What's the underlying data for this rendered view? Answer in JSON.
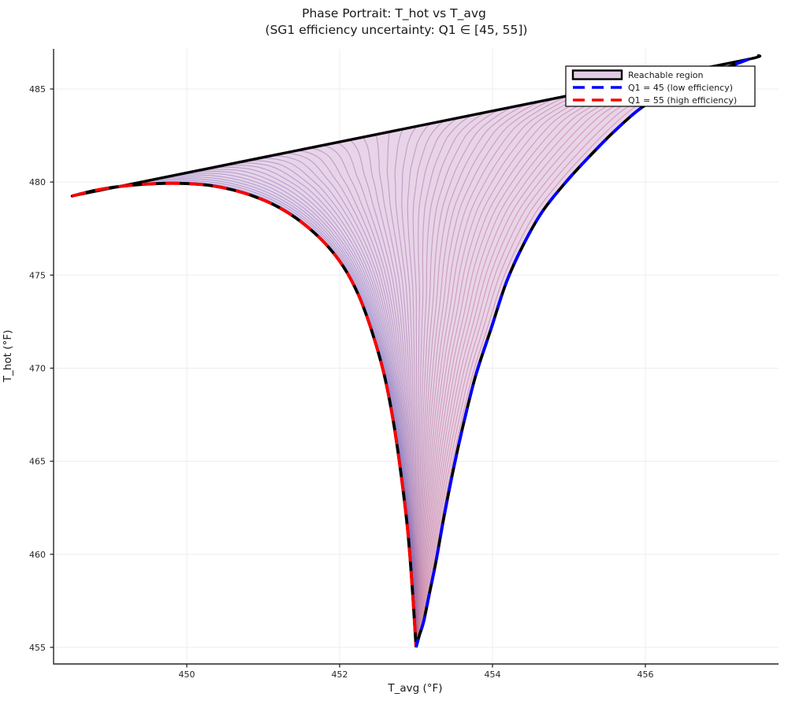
{
  "title": {
    "line1": "Phase Portrait: T_hot vs T_avg",
    "line2": "(SG1 efficiency uncertainty: Q1 ∈ [45, 55])"
  },
  "axes": {
    "xlabel": "T_avg (°F)",
    "ylabel": "T_hot (°F)",
    "x_tick_labels": [
      "450",
      "452",
      "454",
      "456"
    ],
    "x_tick_values": [
      450,
      452,
      454,
      456
    ],
    "y_tick_labels": [
      "455",
      "460",
      "465",
      "470",
      "475",
      "480",
      "485"
    ],
    "y_tick_values": [
      455,
      460,
      465,
      470,
      475,
      480,
      485
    ]
  },
  "legend": {
    "items": [
      {
        "label": "Reachable region",
        "type": "patch",
        "fill": "#e3cce6",
        "edge": "#000000"
      },
      {
        "label": "Q1 = 45 (low efficiency)",
        "type": "dash",
        "color": "#0000ff"
      },
      {
        "label": "Q1 = 55 (high efficiency)",
        "type": "dash",
        "color": "#ff0000"
      }
    ]
  },
  "chart_data": {
    "type": "area",
    "title": "Phase Portrait: T_hot vs T_avg (SG1 efficiency uncertainty: Q1 ∈ [45, 55])",
    "xlabel": "T_avg (°F)",
    "ylabel": "T_hot (°F)",
    "xlim": [
      448.26,
      457.74
    ],
    "ylim": [
      454.1,
      487.2
    ],
    "grid": true,
    "legend_position": "upper right",
    "grid_color": "#ededed",
    "spine_color": "#262626",
    "cusp": [
      453.0,
      455.0
    ],
    "region_fill_color": "#e8d4e8",
    "upper_boundary": {
      "name": "Reachable region upper boundary",
      "color": "#000000",
      "points": [
        [
          448.5,
          479.25
        ],
        [
          453.0,
          482.99
        ],
        [
          456.0,
          485.48
        ],
        [
          457.35,
          486.6
        ],
        [
          457.48,
          486.8
        ]
      ]
    },
    "series": [
      {
        "name": "Q1 = 55 (high efficiency)",
        "color": "#ff0000",
        "style": "dashed-over-black",
        "points": [
          [
            448.5,
            479.25
          ],
          [
            448.8,
            479.55
          ],
          [
            449.1,
            479.75
          ],
          [
            449.4,
            479.87
          ],
          [
            449.7,
            479.93
          ],
          [
            450.0,
            479.92
          ],
          [
            450.3,
            479.82
          ],
          [
            450.6,
            479.58
          ],
          [
            450.9,
            479.2
          ],
          [
            451.2,
            478.65
          ],
          [
            451.5,
            477.85
          ],
          [
            451.8,
            476.75
          ],
          [
            452.05,
            475.45
          ],
          [
            452.25,
            473.9
          ],
          [
            452.42,
            472.0
          ],
          [
            452.58,
            469.7
          ],
          [
            452.7,
            467.2
          ],
          [
            452.8,
            464.4
          ],
          [
            452.89,
            461.3
          ],
          [
            452.95,
            458.2
          ],
          [
            453.0,
            455.0
          ]
        ]
      },
      {
        "name": "Q1 = 45 (low efficiency)",
        "color": "#0000ff",
        "style": "dashed-over-black",
        "points": [
          [
            457.35,
            486.6
          ],
          [
            457.0,
            486.05
          ],
          [
            456.65,
            485.45
          ],
          [
            456.3,
            484.8
          ],
          [
            455.95,
            484.0
          ],
          [
            455.6,
            482.75
          ],
          [
            455.25,
            481.3
          ],
          [
            454.95,
            479.95
          ],
          [
            454.65,
            478.4
          ],
          [
            454.4,
            476.6
          ],
          [
            454.18,
            474.6
          ],
          [
            453.98,
            472.1
          ],
          [
            453.78,
            469.6
          ],
          [
            453.62,
            467.0
          ],
          [
            453.48,
            464.4
          ],
          [
            453.36,
            461.9
          ],
          [
            453.26,
            459.6
          ],
          [
            453.17,
            457.8
          ],
          [
            453.1,
            456.4
          ],
          [
            453.04,
            455.6
          ],
          [
            453.0,
            455.0
          ]
        ]
      }
    ],
    "trajectories": {
      "count": 48,
      "color_start": "#7070c8",
      "color_end": "#c96480",
      "opacity": 0.5,
      "description": "Family of phase trajectories interpolating between the Q1 = 55 and Q1 = 45 boundary curves, fanning out from the straight upper boundary and converging to the cusp at (453, 455)"
    }
  }
}
